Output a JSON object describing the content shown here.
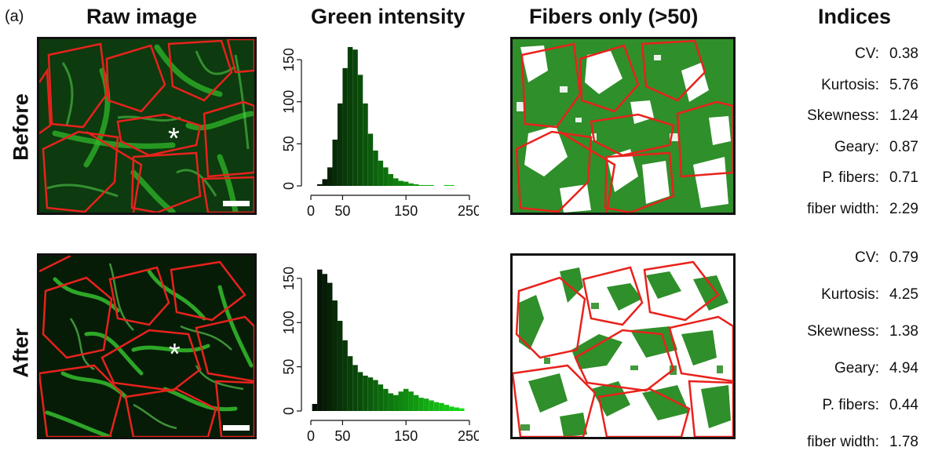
{
  "panel_label": "(a)",
  "columns": {
    "raw": "Raw image",
    "hist": "Green intensity",
    "fibers": "Fibers only (>50)",
    "indices": "Indices"
  },
  "rows": [
    {
      "label": "Before",
      "indices": [
        {
          "name": "CV:",
          "value": "0.38"
        },
        {
          "name": "Kurtosis:",
          "value": "5.76"
        },
        {
          "name": "Skewness:",
          "value": "1.24"
        },
        {
          "name": "Geary:",
          "value": "0.87"
        },
        {
          "name": "P. fibers:",
          "value": "0.71"
        },
        {
          "name": "fiber width:",
          "value": "2.29"
        }
      ]
    },
    {
      "label": "After",
      "indices": [
        {
          "name": "CV:",
          "value": "0.79"
        },
        {
          "name": "Kurtosis:",
          "value": "4.25"
        },
        {
          "name": "Skewness:",
          "value": "1.38"
        },
        {
          "name": "Geary:",
          "value": "4.94"
        },
        {
          "name": "P. fibers:",
          "value": "0.44"
        },
        {
          "name": "fiber width:",
          "value": "1.78"
        }
      ]
    }
  ],
  "asterisk": "*",
  "colors": {
    "cell_outline": "#e8221c",
    "fiber": "#2f8f2a",
    "tissue": "#0f3a10"
  },
  "chart_data": [
    {
      "type": "bar",
      "xlim": [
        0,
        250
      ],
      "ylim": [
        0,
        165
      ],
      "x_ticks": [
        0,
        50,
        150,
        250
      ],
      "y_ticks": [
        0,
        50,
        100,
        150
      ],
      "bin_width": 8,
      "bin_starts": [
        10,
        18,
        26,
        34,
        42,
        50,
        58,
        66,
        74,
        82,
        90,
        98,
        106,
        114,
        122,
        130,
        138,
        146,
        154,
        162,
        170,
        178,
        186,
        194,
        202,
        210,
        218
      ],
      "values": [
        2,
        8,
        22,
        55,
        98,
        140,
        165,
        162,
        132,
        98,
        62,
        42,
        30,
        22,
        14,
        9,
        6,
        5,
        3,
        2,
        1,
        1,
        1,
        0,
        0,
        1,
        1
      ]
    },
    {
      "type": "bar",
      "xlim": [
        0,
        250
      ],
      "ylim": [
        0,
        165
      ],
      "x_ticks": [
        0,
        50,
        150,
        250
      ],
      "y_ticks": [
        0,
        50,
        100,
        150
      ],
      "bin_width": 8,
      "bin_starts": [
        2,
        10,
        18,
        26,
        34,
        42,
        50,
        58,
        66,
        74,
        82,
        90,
        98,
        106,
        114,
        122,
        130,
        138,
        146,
        154,
        162,
        170,
        178,
        186,
        194,
        202,
        210,
        218,
        226,
        234
      ],
      "values": [
        8,
        160,
        155,
        145,
        125,
        102,
        80,
        62,
        52,
        44,
        40,
        38,
        35,
        30,
        25,
        20,
        18,
        22,
        25,
        22,
        18,
        15,
        14,
        12,
        10,
        9,
        7,
        5,
        4,
        3
      ]
    }
  ]
}
